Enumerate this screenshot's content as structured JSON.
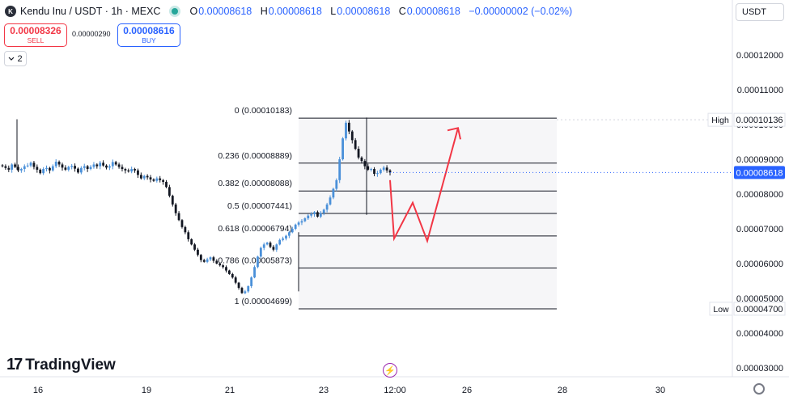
{
  "header": {
    "logo_letter": "K",
    "symbol": "Kendu Inu / USDT · 1h · MEXC",
    "open_key": "O",
    "open": "0.00008618",
    "high_key": "H",
    "high": "0.00008618",
    "low_key": "L",
    "low": "0.00008618",
    "close_key": "C",
    "close": "0.00008618",
    "change": "−0.00000002 (−0.02%)",
    "ohlc_color": "#2962ff"
  },
  "trade": {
    "sell_price": "0.00008326",
    "sell_label": "SELL",
    "spread": "0.00000290",
    "buy_price": "0.00008616",
    "buy_label": "BUY"
  },
  "indicator_toggle": {
    "count": "2",
    "icon": "chevron-down-icon"
  },
  "currency_select": "USDT",
  "branding": {
    "mark": "17",
    "name": "TradingView"
  },
  "colors": {
    "up": "#4a90d9",
    "down": "#131722",
    "fib": "#131722",
    "projection": "#f23645",
    "price_label": "#2962ff"
  },
  "chart_data": {
    "type": "candlestick",
    "symbol": "Kendu Inu / USDT",
    "interval": "1h",
    "exchange": "MEXC",
    "x_ticks": [
      "16",
      "19",
      "21",
      "23",
      "12:00",
      "26",
      "28",
      "30"
    ],
    "y_ticks": [
      "0.00012000",
      "0.00011000",
      "0.00010000",
      "0.00009000",
      "0.00008000",
      "0.00007000",
      "0.00006000",
      "0.00005000",
      "0.00004000",
      "0.00003000"
    ],
    "y_tick_values": [
      0.00012,
      0.00011,
      0.0001,
      9e-05,
      8e-05,
      7e-05,
      6e-05,
      5e-05,
      4e-05,
      3e-05
    ],
    "ylim": [
      2.6e-05,
      0.000126
    ],
    "last_price": "0.00008618",
    "last_price_value": 8.618e-05,
    "high_marker": {
      "label": "High",
      "value": "0.00010136",
      "number": 0.00010136
    },
    "low_marker": {
      "label": "Low",
      "value": "0.00004700",
      "number": 4.7e-05
    },
    "fib_levels": [
      {
        "ratio": "0",
        "price": "0.00010183",
        "value": 0.00010183
      },
      {
        "ratio": "0.236",
        "price": "0.00008889",
        "value": 8.889e-05
      },
      {
        "ratio": "0.382",
        "price": "0.00008088",
        "value": 8.088e-05
      },
      {
        "ratio": "0.5",
        "price": "0.00007441",
        "value": 7.441e-05
      },
      {
        "ratio": "0.618",
        "price": "0.00006794",
        "value": 6.794e-05
      },
      {
        "ratio": "0.786",
        "price": "0.00005873",
        "value": 5.873e-05
      },
      {
        "ratio": "1",
        "price": "0.00004699",
        "value": 4.699e-05
      }
    ],
    "price_series_approx": [
      8.8e-05,
      8.75e-05,
      8.7e-05,
      8.85e-05,
      8.78e-05,
      8.68e-05,
      8.72e-05,
      8.8e-05,
      8.82e-05,
      8.9e-05,
      8.78e-05,
      8.7e-05,
      8.6e-05,
      8.72e-05,
      8.75e-05,
      8.68e-05,
      8.8e-05,
      8.93e-05,
      8.85e-05,
      8.76e-05,
      8.7e-05,
      8.78e-05,
      8.81e-05,
      8.73e-05,
      8.62e-05,
      8.75e-05,
      8.8e-05,
      8.72e-05,
      8.78e-05,
      8.85e-05,
      8.8e-05,
      8.9e-05,
      8.82e-05,
      8.76e-05,
      8.8e-05,
      8.92e-05,
      8.85e-05,
      8.78e-05,
      8.72e-05,
      8.68e-05,
      8.65e-05,
      8.72e-05,
      8.68e-05,
      8.55e-05,
      8.45e-05,
      8.52e-05,
      8.48e-05,
      8.42e-05,
      8.38e-05,
      8.45e-05,
      8.4e-05,
      8.35e-05,
      8.2e-05,
      7.95e-05,
      7.7e-05,
      7.45e-05,
      7.25e-05,
      7.05e-05,
      6.9e-05,
      6.7e-05,
      6.55e-05,
      6.4e-05,
      6.25e-05,
      6.1e-05,
      6.05e-05,
      6.12e-05,
      6.18e-05,
      6.08e-05,
      6e-05,
      5.95e-05,
      5.9e-05,
      5.8e-05,
      5.7e-05,
      5.6e-05,
      5.45e-05,
      5.3e-05,
      5.15e-05,
      5.2e-05,
      5.35e-05,
      5.6e-05,
      5.9e-05,
      6.2e-05,
      6.45e-05,
      6.55e-05,
      6.6e-05,
      6.48e-05,
      6.4e-05,
      6.55e-05,
      6.68e-05,
      6.72e-05,
      6.8e-05,
      6.9e-05,
      7e-05,
      7.12e-05,
      7.18e-05,
      7.22e-05,
      7.3e-05,
      7.38e-05,
      7.42e-05,
      7.48e-05,
      7.35e-05,
      7.45e-05,
      7.55e-05,
      7.7e-05,
      7.9e-05,
      8.15e-05,
      8.4e-05,
      9e-05,
      9.6e-05,
      0.0001005,
      9.8e-05,
      9.55e-05,
      9.3e-05,
      9.05e-05,
      8.95e-05,
      8.8e-05,
      8.7e-05,
      8.72e-05,
      8.58e-05,
      8.6e-05,
      8.7e-05,
      8.76e-05,
      8.68e-05,
      8.62e-05
    ],
    "projection_path": [
      [
        8.4e-05,
        6.72e-05
      ],
      [
        7.75e-05,
        6.72e-05
      ],
      [
        6.65e-05,
        6.6e-05
      ],
      [
        9.9e-05,
        9.8e-05
      ]
    ]
  }
}
